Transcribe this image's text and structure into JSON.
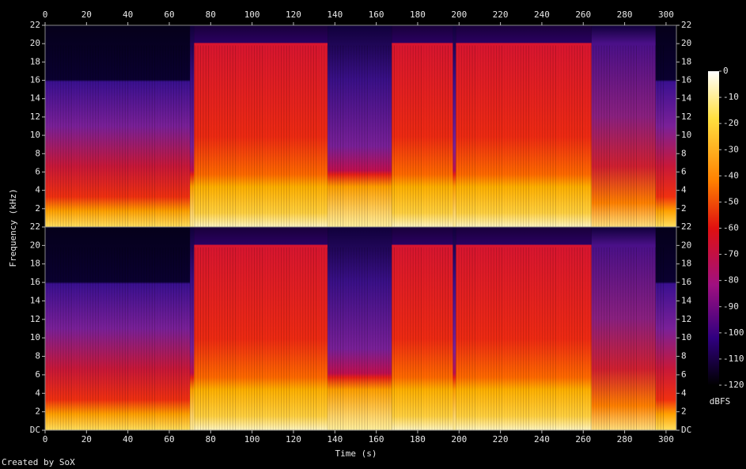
{
  "chart_data": {
    "type": "spectrogram",
    "xlabel": "Time (s)",
    "ylabel": "Frequency (kHz)",
    "xlim": [
      0,
      305
    ],
    "xticks": [
      0,
      20,
      40,
      60,
      80,
      100,
      120,
      140,
      160,
      180,
      200,
      220,
      240,
      260,
      280,
      300
    ],
    "ylim": [
      0,
      22
    ],
    "channels": [
      {
        "yticks": [
          2,
          4,
          6,
          8,
          10,
          12,
          14,
          16,
          18,
          20,
          22
        ]
      },
      {
        "yticks": [
          {
            "value": 0,
            "label": "DC"
          },
          2,
          4,
          6,
          8,
          10,
          12,
          14,
          16,
          18,
          20,
          22
        ]
      }
    ],
    "colorbar": {
      "label": "dBFS",
      "lim": [
        -120,
        0
      ],
      "ticks": [
        0,
        -10,
        -20,
        -30,
        -40,
        -50,
        -60,
        -70,
        -80,
        -90,
        -100,
        -110,
        -120
      ]
    },
    "footer": "Created by SoX"
  }
}
